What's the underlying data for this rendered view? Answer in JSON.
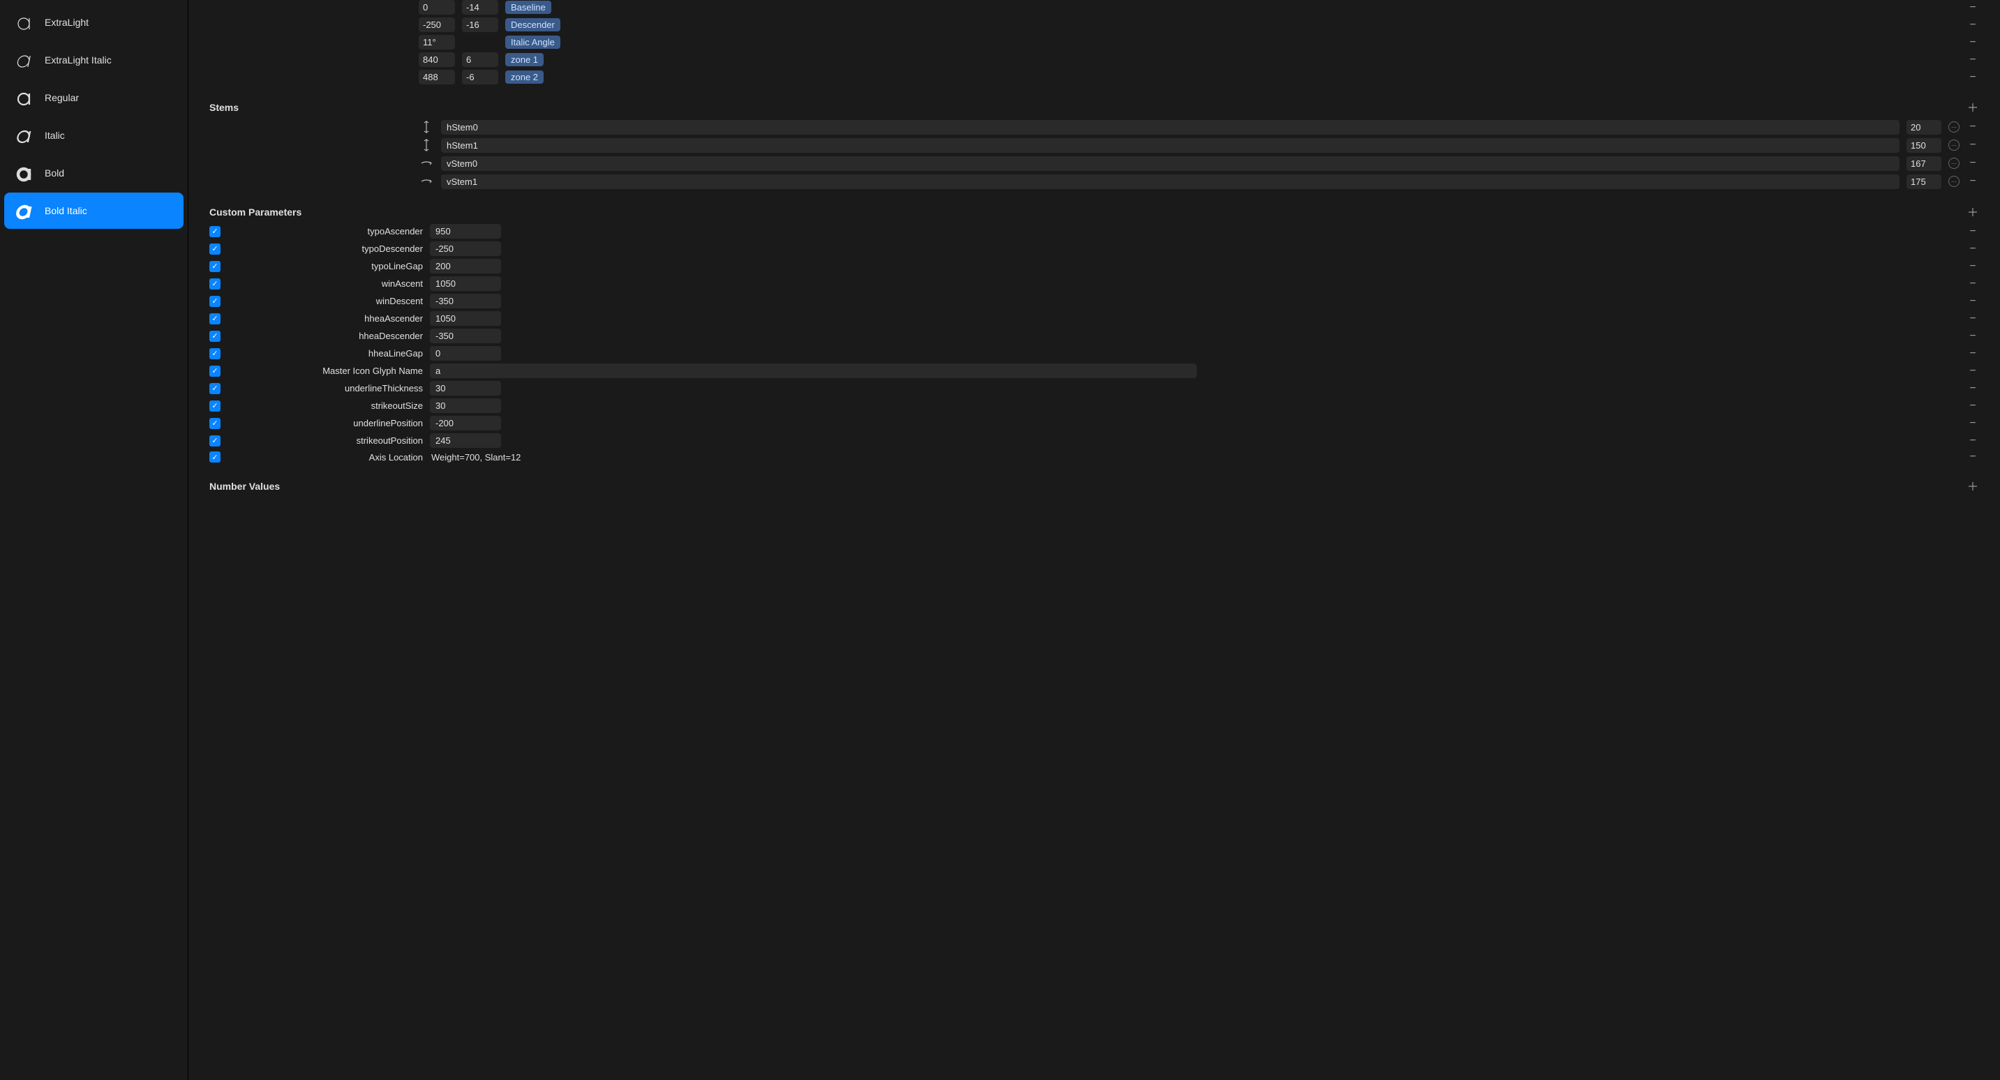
{
  "sidebar": {
    "items": [
      {
        "label": "ExtraLight",
        "italic": false,
        "weight": "light"
      },
      {
        "label": "ExtraLight Italic",
        "italic": true,
        "weight": "light"
      },
      {
        "label": "Regular",
        "italic": false,
        "weight": "regular"
      },
      {
        "label": "Italic",
        "italic": true,
        "weight": "regular"
      },
      {
        "label": "Bold",
        "italic": false,
        "weight": "bold"
      },
      {
        "label": "Bold Italic",
        "italic": true,
        "weight": "bold"
      }
    ],
    "selected": 5
  },
  "zones": [
    {
      "v1": "0",
      "v2": "-14",
      "tag": "Baseline"
    },
    {
      "v1": "-250",
      "v2": "-16",
      "tag": "Descender"
    },
    {
      "v1": "11°",
      "v2": null,
      "tag": "Italic Angle"
    },
    {
      "v1": "840",
      "v2": "6",
      "tag": "zone 1"
    },
    {
      "v1": "488",
      "v2": "-6",
      "tag": "zone 2"
    }
  ],
  "stems": {
    "title": "Stems",
    "rows": [
      {
        "dir": "v",
        "name": "hStem0",
        "val": "20"
      },
      {
        "dir": "v",
        "name": "hStem1",
        "val": "150"
      },
      {
        "dir": "h",
        "name": "vStem0",
        "val": "167"
      },
      {
        "dir": "h",
        "name": "vStem1",
        "val": "175"
      }
    ]
  },
  "custom_params": {
    "title": "Custom Parameters",
    "rows": [
      {
        "label": "typoAscender",
        "val": "950",
        "wide": false
      },
      {
        "label": "typoDescender",
        "val": "-250",
        "wide": false
      },
      {
        "label": "typoLineGap",
        "val": "200",
        "wide": false
      },
      {
        "label": "winAscent",
        "val": "1050",
        "wide": false
      },
      {
        "label": "winDescent",
        "val": "-350",
        "wide": false
      },
      {
        "label": "hheaAscender",
        "val": "1050",
        "wide": false
      },
      {
        "label": "hheaDescender",
        "val": "-350",
        "wide": false
      },
      {
        "label": "hheaLineGap",
        "val": "0",
        "wide": false
      },
      {
        "label": "Master Icon Glyph Name",
        "val": "a",
        "wide": true
      },
      {
        "label": "underlineThickness",
        "val": "30",
        "wide": false
      },
      {
        "label": "strikeoutSize",
        "val": "30",
        "wide": false
      },
      {
        "label": "underlinePosition",
        "val": "-200",
        "wide": false
      },
      {
        "label": "strikeoutPosition",
        "val": "245",
        "wide": false
      },
      {
        "label": "Axis Location",
        "text": "Weight=700, Slant=12",
        "wide": false
      }
    ]
  },
  "number_values": {
    "title": "Number Values"
  },
  "colors": {
    "bg": "#1a1a1a",
    "input_bg": "#2a2a2a",
    "accent": "#0a84ff",
    "tag_bg": "#3a5a8a",
    "tag_fg": "#cde0ff",
    "text": "#e0e0e0",
    "muted": "#999999"
  }
}
